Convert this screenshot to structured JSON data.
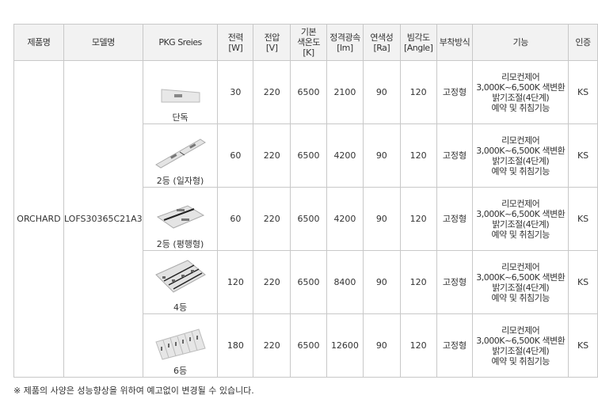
{
  "headers": [
    "제품명",
    "모델명",
    "PKG Sreies",
    "전력\n[W]",
    "전압\n[V]",
    "기본\n색온도\n[K]",
    "정격광속\n[lm]",
    "연색성\n[Ra]",
    "빔각도\n[Angle]",
    "부착방식",
    "기능",
    "인증"
  ],
  "product": "ORCHARD",
  "model": "LOFS30365C21A3",
  "rows": [
    {
      "pkg": "단독",
      "icon": "single-lamp",
      "power": "30",
      "voltage": "220",
      "cct": "6500",
      "lumen": "2100",
      "ra": "90",
      "angle": "120",
      "mount": "고정형",
      "func": [
        "리모컨제어",
        "3,000K~6,500K 색변환",
        "밝기조절(4단계)",
        "예약 및 취침기능"
      ],
      "cert": "KS"
    },
    {
      "pkg": "2등 (일자형)",
      "icon": "two-lamp-inline",
      "power": "60",
      "voltage": "220",
      "cct": "6500",
      "lumen": "4200",
      "ra": "90",
      "angle": "120",
      "mount": "고정형",
      "func": [
        "리모컨제어",
        "3,000K~6,500K 색변환",
        "밝기조절(4단계)",
        "예약 및 취침기능"
      ],
      "cert": "KS"
    },
    {
      "pkg": "2등 (평행형)",
      "icon": "two-lamp-parallel",
      "power": "60",
      "voltage": "220",
      "cct": "6500",
      "lumen": "4200",
      "ra": "90",
      "angle": "120",
      "mount": "고정형",
      "func": [
        "리모컨제어",
        "3,000K~6,500K 색변환",
        "밝기조절(4단계)",
        "예약 및 취침기능"
      ],
      "cert": "KS"
    },
    {
      "pkg": "4등",
      "icon": "four-lamp",
      "power": "120",
      "voltage": "220",
      "cct": "6500",
      "lumen": "8400",
      "ra": "90",
      "angle": "120",
      "mount": "고정형",
      "func": [
        "리모컨제어",
        "3,000K~6,500K 색변환",
        "밝기조절(4단계)",
        "예약 및 취침기능"
      ],
      "cert": "KS"
    },
    {
      "pkg": "6등",
      "icon": "six-lamp",
      "power": "180",
      "voltage": "220",
      "cct": "6500",
      "lumen": "12600",
      "ra": "90",
      "angle": "120",
      "mount": "고정형",
      "func": [
        "리모컨제어",
        "3,000K~6,500K 색변환",
        "밝기조절(4단계)",
        "예약 및 취침기능"
      ],
      "cert": "KS"
    }
  ],
  "note": "※ 제품의 사양은 성능향상을 위하여 예고없이 변경될 수 있습니다."
}
